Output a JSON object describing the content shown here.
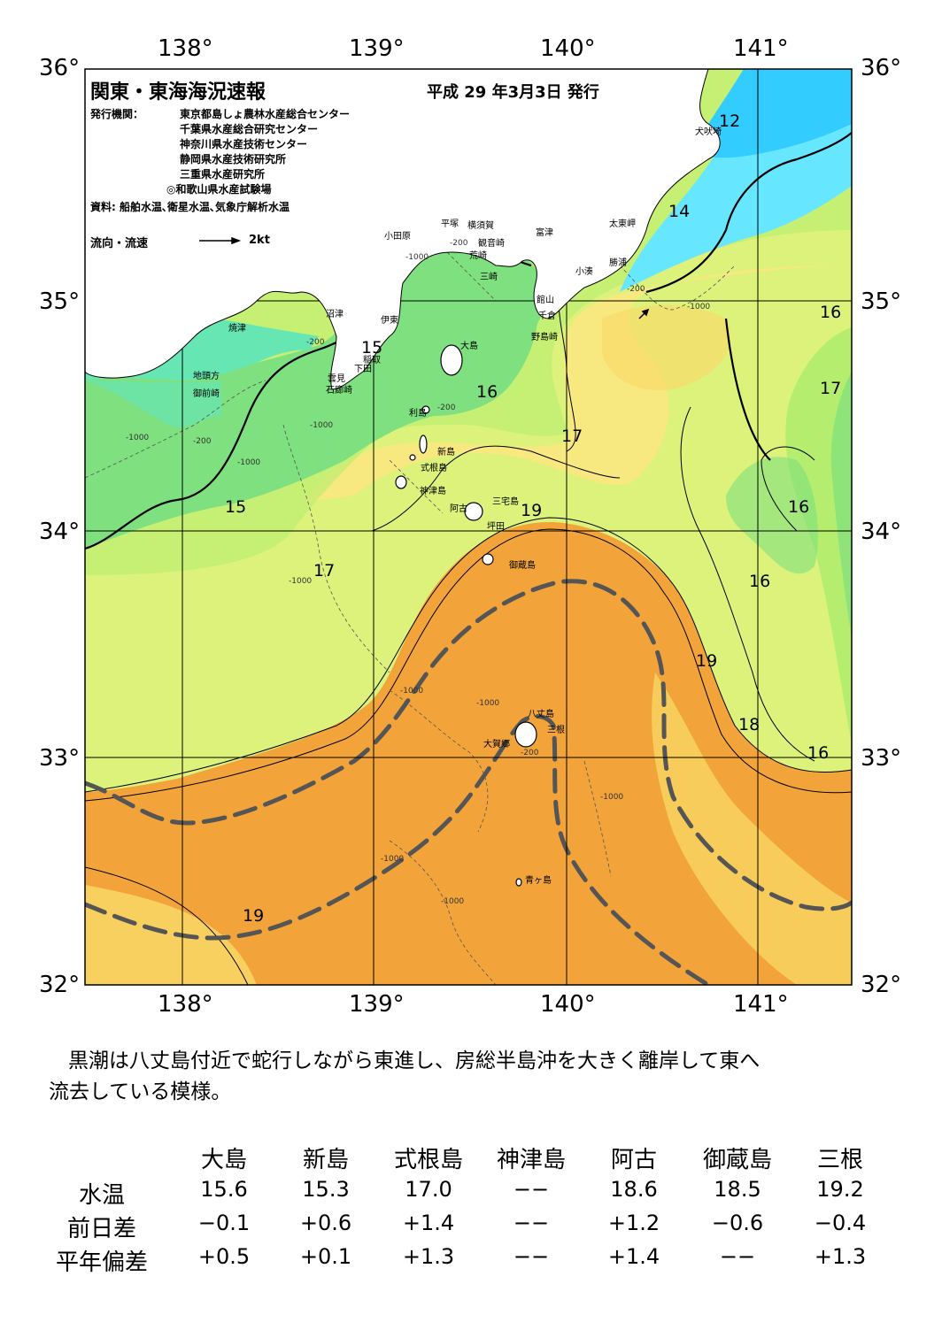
{
  "header": {
    "title": "関東・東海海況速報",
    "date": "平成 29 年3月3日 発行",
    "publisher_label": "発行機関：",
    "publishers": [
      "東京都島しょ農林水産総合センター",
      "千葉県水産総合研究センター",
      "神奈川県水産技術センター",
      "静岡県水産技術研究所",
      "三重県水産研究所",
      "◎和歌山県水産試験場"
    ],
    "source": "資料: 船舶水温､衛星水温､気象庁解析水温",
    "legend_label": "流向・流速",
    "legend_speed": "2kt"
  },
  "axes": {
    "top_lon": [
      "138°",
      "139°",
      "140°",
      "141°"
    ],
    "bottom_lon": [
      "138°",
      "139°",
      "140°",
      "141°"
    ],
    "left_lat": [
      "36°",
      "35°",
      "34°",
      "33°",
      "32°"
    ],
    "right_lat": [
      "36°",
      "35°",
      "34°",
      "33°",
      "32°"
    ],
    "lon_range": [
      137.5,
      141.5
    ],
    "lat_range": [
      32,
      36
    ]
  },
  "isotherm_labels": [
    "12",
    "14",
    "16",
    "17",
    "15",
    "16",
    "17",
    "19",
    "15",
    "17",
    "16",
    "16",
    "19",
    "18",
    "16",
    "19"
  ],
  "places": [
    "犬吠埼",
    "太東岬",
    "勝浦",
    "小湊",
    "館山",
    "千倉",
    "野島崎",
    "富津",
    "横須賀",
    "観音崎",
    "荒崎",
    "三崎",
    "平塚",
    "小田原",
    "沼津",
    "伊東",
    "稲取",
    "下田",
    "雲見",
    "石廊崎",
    "焼津",
    "地頭方",
    "御前崎",
    "大島",
    "利島",
    "新島",
    "式根島",
    "神津島",
    "三宅島",
    "阿古",
    "坪田",
    "御蔵島",
    "八丈島",
    "三根",
    "大賀郷",
    "青ヶ島"
  ],
  "depth_labels": [
    "-200",
    "-1000"
  ],
  "colors": {
    "very_cold": "#33ccff",
    "cold": "#66e6ff",
    "cyan_green": "#66e6b3",
    "green": "#7ee07e",
    "light_green": "#b5ee6e",
    "yellow_green": "#dcf27a",
    "yellow": "#f8e880",
    "light_orange": "#f8cc5a",
    "orange": "#f2a43a",
    "kuroshio": "#555555"
  },
  "summary": {
    "line1": "黒潮は八丈島付近で蛇行しながら東進し、房総半島沖を大きく離岸して東へ",
    "line2": "流去している模様。"
  },
  "stats": {
    "columns": [
      "大島",
      "新島",
      "式根島",
      "神津島",
      "阿古",
      "御蔵島",
      "三根"
    ],
    "rows": [
      {
        "label": "水温",
        "values": [
          "15.6",
          "15.3",
          "17.0",
          "−−",
          "18.6",
          "18.5",
          "19.2"
        ]
      },
      {
        "label": "前日差",
        "values": [
          "−0.1",
          "+0.6",
          "+1.4",
          "−−",
          "+1.2",
          "−0.6",
          "−0.4"
        ]
      },
      {
        "label": "平年偏差",
        "values": [
          "+0.5",
          "+0.1",
          "+1.3",
          "−−",
          "+1.4",
          "−−",
          "+1.3"
        ]
      }
    ]
  }
}
